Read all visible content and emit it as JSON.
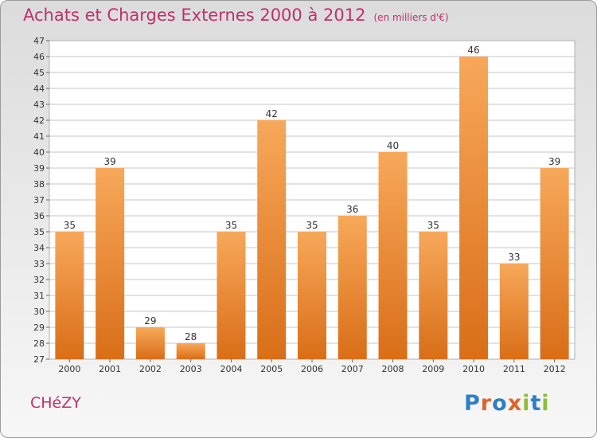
{
  "header": {
    "title": "Achats et Charges Externes 2000 à 2012",
    "unit": "(en milliers d'€)"
  },
  "commune": "CHéZY",
  "logo": {
    "text": "Proxiti"
  },
  "colors": {
    "title": "#c0306a",
    "bar_light": "#f7a85a",
    "bar_dark": "#d96e18",
    "grid": "#c4c4c4"
  },
  "chart_data": {
    "type": "bar",
    "title": "Achats et Charges Externes 2000 à 2012",
    "xlabel": "",
    "ylabel": "",
    "categories": [
      "2000",
      "2001",
      "2002",
      "2003",
      "2004",
      "2005",
      "2006",
      "2007",
      "2008",
      "2009",
      "2010",
      "2011",
      "2012"
    ],
    "values": [
      35,
      39,
      29,
      28,
      35,
      42,
      35,
      36,
      40,
      35,
      46,
      33,
      39
    ],
    "ylim": [
      27,
      47
    ],
    "yticks": [
      27,
      28,
      29,
      30,
      31,
      32,
      33,
      34,
      35,
      36,
      37,
      38,
      39,
      40,
      41,
      42,
      43,
      44,
      45,
      46,
      47
    ],
    "grid": true,
    "legend": "none"
  }
}
